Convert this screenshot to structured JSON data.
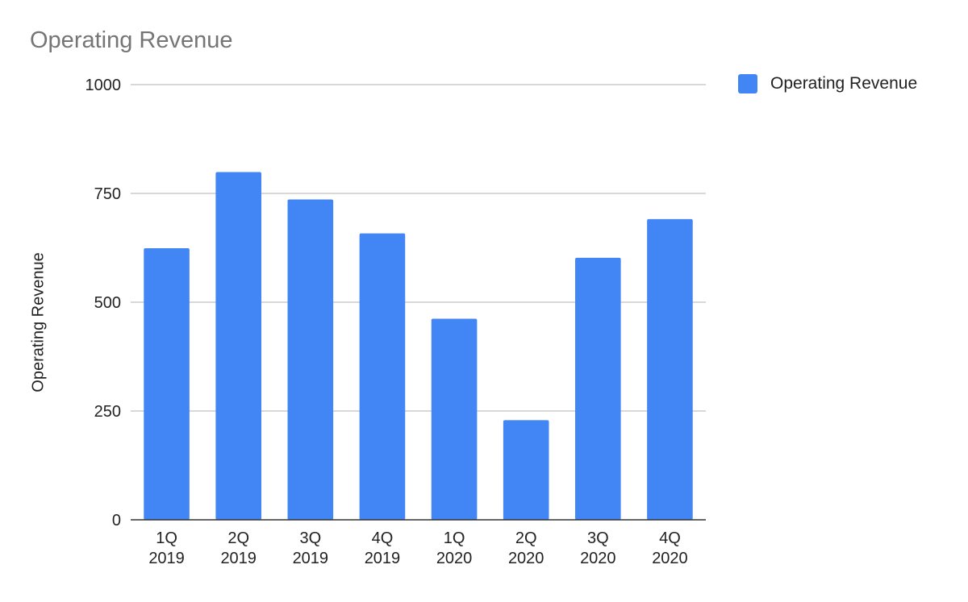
{
  "chart_data": {
    "type": "bar",
    "title": "Operating Revenue",
    "ylabel": "Operating Revenue",
    "xlabel": "",
    "categories": [
      [
        "1Q",
        "2019"
      ],
      [
        "2Q",
        "2019"
      ],
      [
        "3Q",
        "2019"
      ],
      [
        "4Q",
        "2019"
      ],
      [
        "1Q",
        "2020"
      ],
      [
        "2Q",
        "2020"
      ],
      [
        "3Q",
        "2020"
      ],
      [
        "4Q",
        "2020"
      ]
    ],
    "series": [
      {
        "name": "Operating Revenue",
        "values": [
          624,
          799,
          736,
          658,
          462,
          229,
          602,
          691
        ],
        "color": "#4285f4"
      }
    ],
    "ylim": [
      0,
      1000
    ],
    "yticks": [
      "0",
      "250",
      "500",
      "750",
      "1000"
    ],
    "grid": true,
    "legend_position": "top-right"
  }
}
